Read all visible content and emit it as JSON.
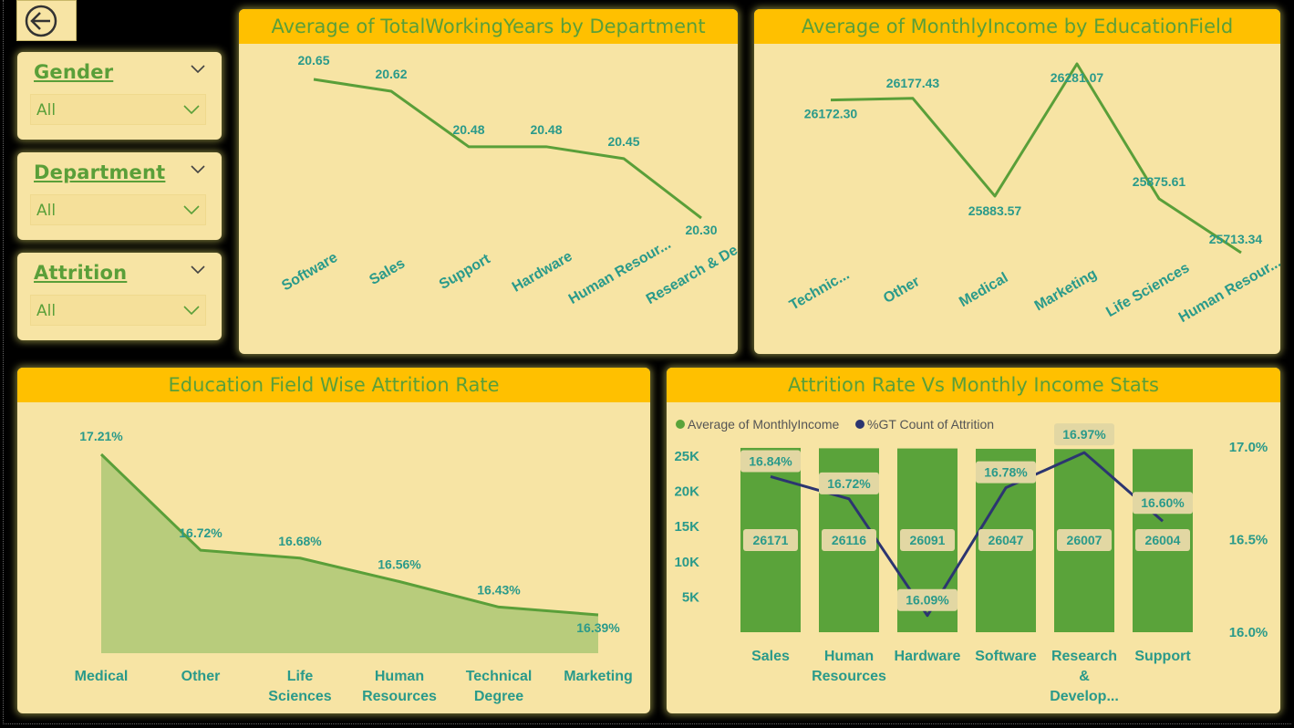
{
  "slicers": [
    {
      "title": "Gender",
      "value": "All"
    },
    {
      "title": "Department",
      "value": "All"
    },
    {
      "title": "Attrition",
      "value": "All"
    }
  ],
  "chart_data": [
    {
      "type": "line",
      "title": "Average of TotalWorkingYears by Department",
      "categories": [
        "Software",
        "Sales",
        "Support",
        "Hardware",
        "Human Resour...",
        "Research & De..."
      ],
      "values": [
        20.65,
        20.62,
        20.48,
        20.48,
        20.45,
        20.3
      ],
      "data_labels": [
        "20.65",
        "20.62",
        "20.48",
        "20.48",
        "20.45",
        "20.30"
      ],
      "color": "#5a9f39"
    },
    {
      "type": "line",
      "title": "Average of MonthlyIncome by EducationField",
      "categories": [
        "Technic...",
        "Other",
        "Medical",
        "Marketing",
        "Life Sciences",
        "Human Resour..."
      ],
      "values": [
        26172.3,
        26177.43,
        25883.57,
        26281.07,
        25875.61,
        25713.34
      ],
      "data_labels": [
        "26172.30",
        "26177.43",
        "25883.57",
        "26281.07",
        "25875.61",
        "25713.34"
      ],
      "color": "#5a9f39"
    },
    {
      "type": "area",
      "title": "Education Field Wise Attrition Rate",
      "categories": [
        [
          "Medical"
        ],
        [
          "Other"
        ],
        [
          "Life",
          "Sciences"
        ],
        [
          "Human",
          "Resources"
        ],
        [
          "Technical",
          "Degree"
        ],
        [
          "Marketing"
        ]
      ],
      "values": [
        17.21,
        16.72,
        16.68,
        16.56,
        16.43,
        16.39
      ],
      "data_labels": [
        "17.21%",
        "16.72%",
        "16.68%",
        "16.56%",
        "16.43%",
        "16.39%"
      ],
      "line_color": "#5a9f39",
      "fill_color": "#b8cc7c"
    },
    {
      "type": "bar",
      "title": "Attrition Rate Vs Monthly Income Stats",
      "categories": [
        [
          "Sales"
        ],
        [
          "Human",
          "Resources"
        ],
        [
          "Hardware"
        ],
        [
          "Software"
        ],
        [
          "Research",
          "&",
          "Develop..."
        ],
        [
          "Support"
        ]
      ],
      "series": [
        {
          "name": "Average of MonthlyIncome",
          "type": "bar",
          "values": [
            26171,
            26116,
            26091,
            26047,
            26007,
            26004
          ],
          "data_labels": [
            "26171",
            "26116",
            "26091",
            "26047",
            "26007",
            "26004"
          ],
          "color": "#5aa33a"
        },
        {
          "name": "%GT Count of Attrition",
          "type": "line",
          "values": [
            16.84,
            16.72,
            16.09,
            16.78,
            16.97,
            16.6
          ],
          "data_labels": [
            "16.84%",
            "16.72%",
            "16.09%",
            "16.78%",
            "16.97%",
            "16.60%"
          ],
          "color": "#2c3570"
        }
      ],
      "y_left_ticks": [
        "5K",
        "10K",
        "15K",
        "20K",
        "25K"
      ],
      "y_left_tick_values": [
        5000,
        10000,
        15000,
        20000,
        25000
      ],
      "y_right_ticks": [
        "16.0%",
        "16.5%",
        "17.0%"
      ],
      "y_right_tick_values": [
        16.0,
        16.5,
        17.0
      ]
    }
  ]
}
